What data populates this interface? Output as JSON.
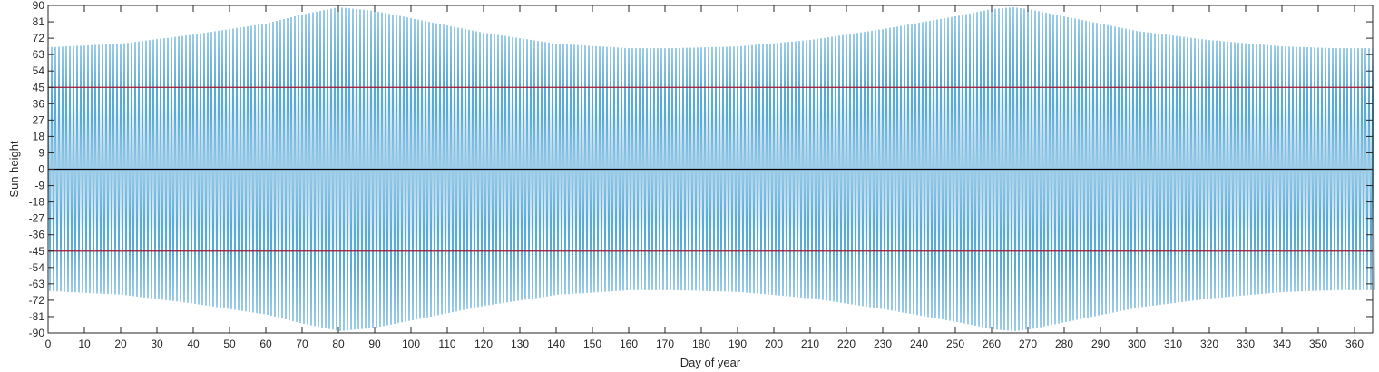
{
  "chart_data": {
    "type": "line",
    "xlabel": "Day of year",
    "ylabel": "Sun height",
    "xlim": [
      0,
      365
    ],
    "ylim": [
      -90,
      90
    ],
    "x_ticks": [
      0,
      10,
      20,
      30,
      40,
      50,
      60,
      70,
      80,
      90,
      100,
      110,
      120,
      130,
      140,
      150,
      160,
      170,
      180,
      190,
      200,
      210,
      220,
      230,
      240,
      250,
      260,
      270,
      280,
      290,
      300,
      310,
      320,
      330,
      340,
      350,
      360
    ],
    "y_ticks": [
      90,
      81,
      72,
      63,
      54,
      45,
      36,
      27,
      18,
      9,
      0,
      -9,
      -18,
      -27,
      -36,
      -45,
      -54,
      -63,
      -72,
      -81,
      -90
    ],
    "grid": false,
    "series": [
      {
        "color": "#5aaad8",
        "description": "sun height oscillating once per day between +A and -A",
        "envelope": {
          "x": [
            0,
            20,
            40,
            60,
            70,
            80,
            90,
            100,
            120,
            140,
            160,
            172,
            190,
            210,
            230,
            250,
            260,
            266,
            270,
            280,
            300,
            320,
            340,
            355,
            365
          ],
          "amplitude": [
            67,
            69,
            74,
            80,
            85,
            89,
            87,
            83,
            75,
            69,
            66.5,
            66.5,
            67.5,
            71,
            77,
            84,
            88,
            89,
            88,
            84,
            76,
            71,
            67.5,
            66.5,
            66.5
          ]
        }
      }
    ],
    "reference_lines": [
      {
        "y": 45,
        "color": "#a2142f"
      },
      {
        "y": -45,
        "color": "#a2142f"
      },
      {
        "y": 0,
        "color": "#000000"
      }
    ]
  }
}
